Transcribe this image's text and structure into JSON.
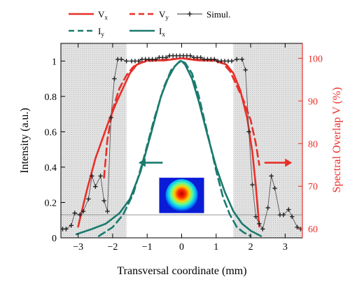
{
  "chart_data": {
    "type": "line",
    "xlabel": "Transversal coordinate (mm)",
    "ylabel_left": "Intensity (a.u.)",
    "ylabel_right": "Spectral Overlap V (%)",
    "xlim": [
      -3.5,
      3.5
    ],
    "ylim_left": [
      0,
      1.1
    ],
    "ylim_right": [
      57.9,
      103.5
    ],
    "x_ticks": [
      -3,
      -2,
      -1,
      0,
      1,
      2,
      3
    ],
    "x_tick_labels": [
      "−3",
      "−2",
      "−1",
      "0",
      "1",
      "2",
      "3"
    ],
    "y_left_ticks": [
      0,
      0.2,
      0.4,
      0.6,
      0.8,
      1
    ],
    "y_left_tick_labels": [
      "0",
      "0.2",
      "0.4",
      "0.6",
      "0.8",
      "1"
    ],
    "y_right_ticks": [
      60,
      70,
      80,
      90,
      100
    ],
    "y_right_tick_labels": [
      "60",
      "70",
      "80",
      "90",
      "100"
    ],
    "shaded_regions": [
      [
        -3.5,
        -1.6
      ],
      [
        1.5,
        3.5
      ]
    ],
    "legend": {
      "placement": "top, above plot",
      "row1": [
        {
          "label": "V",
          "subscript": "x",
          "series": "Vx"
        },
        {
          "label": "V",
          "subscript": "y",
          "series": "Vy"
        },
        {
          "label": "Simul.",
          "subscript": "",
          "series": "Simul"
        }
      ],
      "row2": [
        {
          "label": "I",
          "subscript": "y",
          "series": "Iy"
        },
        {
          "label": "I",
          "subscript": "x",
          "series": "Ix"
        }
      ]
    },
    "series": [
      {
        "key": "Ix",
        "axis": "left",
        "color": "#1a7b6e",
        "style": "solid",
        "x": [
          -3.05,
          -2.6,
          -2.2,
          -1.8,
          -1.5,
          -1.2,
          -0.9,
          -0.6,
          -0.4,
          -0.2,
          -0.05,
          0,
          0.1,
          0.3,
          0.5,
          0.75,
          1.0,
          1.25,
          1.5,
          1.75,
          2.0,
          2.3
        ],
        "y": [
          0.02,
          0.05,
          0.08,
          0.14,
          0.22,
          0.37,
          0.58,
          0.8,
          0.9,
          0.97,
          1.0,
          1.0,
          0.98,
          0.9,
          0.77,
          0.58,
          0.4,
          0.26,
          0.15,
          0.08,
          0.04,
          0.01
        ]
      },
      {
        "key": "Iy",
        "axis": "left",
        "color": "#1a7b6e",
        "style": "dashed",
        "x": [
          -2.4,
          -2.0,
          -1.7,
          -1.4,
          -1.1,
          -0.8,
          -0.5,
          -0.3,
          -0.1,
          0,
          0.1,
          0.3,
          0.5,
          0.8,
          1.0,
          1.2,
          1.4,
          1.6,
          1.8,
          2.0
        ],
        "y": [
          0.01,
          0.06,
          0.13,
          0.25,
          0.45,
          0.67,
          0.86,
          0.95,
          0.99,
          1.0,
          0.99,
          0.93,
          0.8,
          0.55,
          0.38,
          0.23,
          0.13,
          0.06,
          0.03,
          0.01
        ]
      },
      {
        "key": "Vx",
        "axis": "right",
        "color": "#e8302a",
        "style": "solid",
        "x": [
          -3.0,
          -2.75,
          -2.5,
          -2.3,
          -2.1,
          -1.9,
          -1.7,
          -1.5,
          -1.3,
          -1.0,
          -0.5,
          0,
          0.5,
          1.0,
          1.3,
          1.5,
          1.7,
          1.9,
          2.05,
          2.15,
          2.25
        ],
        "y": [
          60.5,
          69,
          76.5,
          81,
          85.5,
          89.5,
          93,
          96.5,
          98.5,
          99.5,
          99.5,
          100,
          99.5,
          99.5,
          98.5,
          96.5,
          92.5,
          86,
          78,
          70,
          60.5
        ]
      },
      {
        "key": "Vy",
        "axis": "right",
        "color": "#e8302a",
        "style": "dashed",
        "x": [
          -2.25,
          -2.15,
          -2.0,
          -1.8,
          -1.6,
          -1.4,
          -1.2,
          -1.0,
          -0.5,
          0,
          0.5,
          1.0,
          1.2,
          1.4,
          1.6,
          1.8,
          2.0,
          2.15,
          2.25
        ],
        "y": [
          72,
          81,
          88,
          93,
          96,
          98,
          99,
          99.3,
          99.7,
          100,
          99.7,
          99.3,
          98.8,
          97,
          93.5,
          90,
          85.5,
          80,
          75
        ]
      },
      {
        "key": "Simul",
        "axis": "left",
        "color": "#555555",
        "style": "solid-plus",
        "x": [
          -3.45,
          -3.35,
          -3.2,
          -3.1,
          -2.95,
          -2.85,
          -2.7,
          -2.6,
          -2.5,
          -2.35,
          -2.25,
          -2.15,
          -2.05,
          -1.95,
          -1.85,
          -1.75,
          -1.6,
          -1.45,
          -1.35,
          -1.25,
          -1.15,
          -1.05,
          -0.95,
          -0.85,
          -0.75,
          -0.65,
          -0.55,
          -0.45,
          -0.35,
          -0.25,
          -0.15,
          -0.05,
          0.05,
          0.15,
          0.25,
          0.35,
          0.45,
          0.55,
          0.65,
          0.75,
          0.85,
          0.95,
          1.05,
          1.15,
          1.25,
          1.35,
          1.45,
          1.6,
          1.75,
          1.85,
          1.95,
          2.05,
          2.15,
          2.25,
          2.35,
          2.5,
          2.6,
          2.7,
          2.85,
          2.95,
          3.1,
          3.2,
          3.35,
          3.45
        ],
        "y": [
          0.05,
          0.05,
          0.07,
          0.14,
          0.13,
          0.15,
          0.22,
          0.35,
          0.29,
          0.35,
          0.21,
          0.15,
          0.68,
          0.9,
          1.01,
          1.01,
          1.0,
          1.0,
          1.0,
          1.0,
          1.01,
          1.01,
          1.01,
          1.01,
          1.01,
          1.02,
          1.02,
          1.02,
          1.03,
          1.03,
          1.03,
          1.03,
          1.03,
          1.03,
          1.03,
          1.02,
          1.02,
          1.02,
          1.01,
          1.01,
          1.01,
          1.01,
          1.0,
          1.0,
          1.0,
          1.0,
          1.0,
          1.01,
          1.01,
          0.95,
          0.6,
          0.3,
          0.12,
          0.08,
          0.05,
          0.17,
          0.35,
          0.28,
          0.13,
          0.13,
          0.16,
          0.12,
          0.06,
          0.05
        ]
      }
    ],
    "reference_line": {
      "axis": "left",
      "y": 0.13,
      "color": "#999999"
    },
    "annotations": [
      {
        "type": "arrow",
        "color": "#1a7b6e",
        "direction": "left",
        "x_from": -0.55,
        "x_to": -1.25,
        "y_left": 0.425
      },
      {
        "type": "arrow",
        "color": "#e8302a",
        "direction": "right",
        "x_from": 2.4,
        "x_to": 3.2,
        "y_left": 0.425
      },
      {
        "type": "inset-image",
        "description": "beam spot",
        "x0": -0.65,
        "x1": 0.65,
        "y_top_left": 0.34,
        "y_bottom_left": 0.14
      }
    ],
    "colors": {
      "left_axis": "#000000",
      "right_axis": "#e8302a",
      "teal": "#1a7b6e",
      "red": "#e8302a",
      "shade": "#d6d6d6"
    }
  }
}
